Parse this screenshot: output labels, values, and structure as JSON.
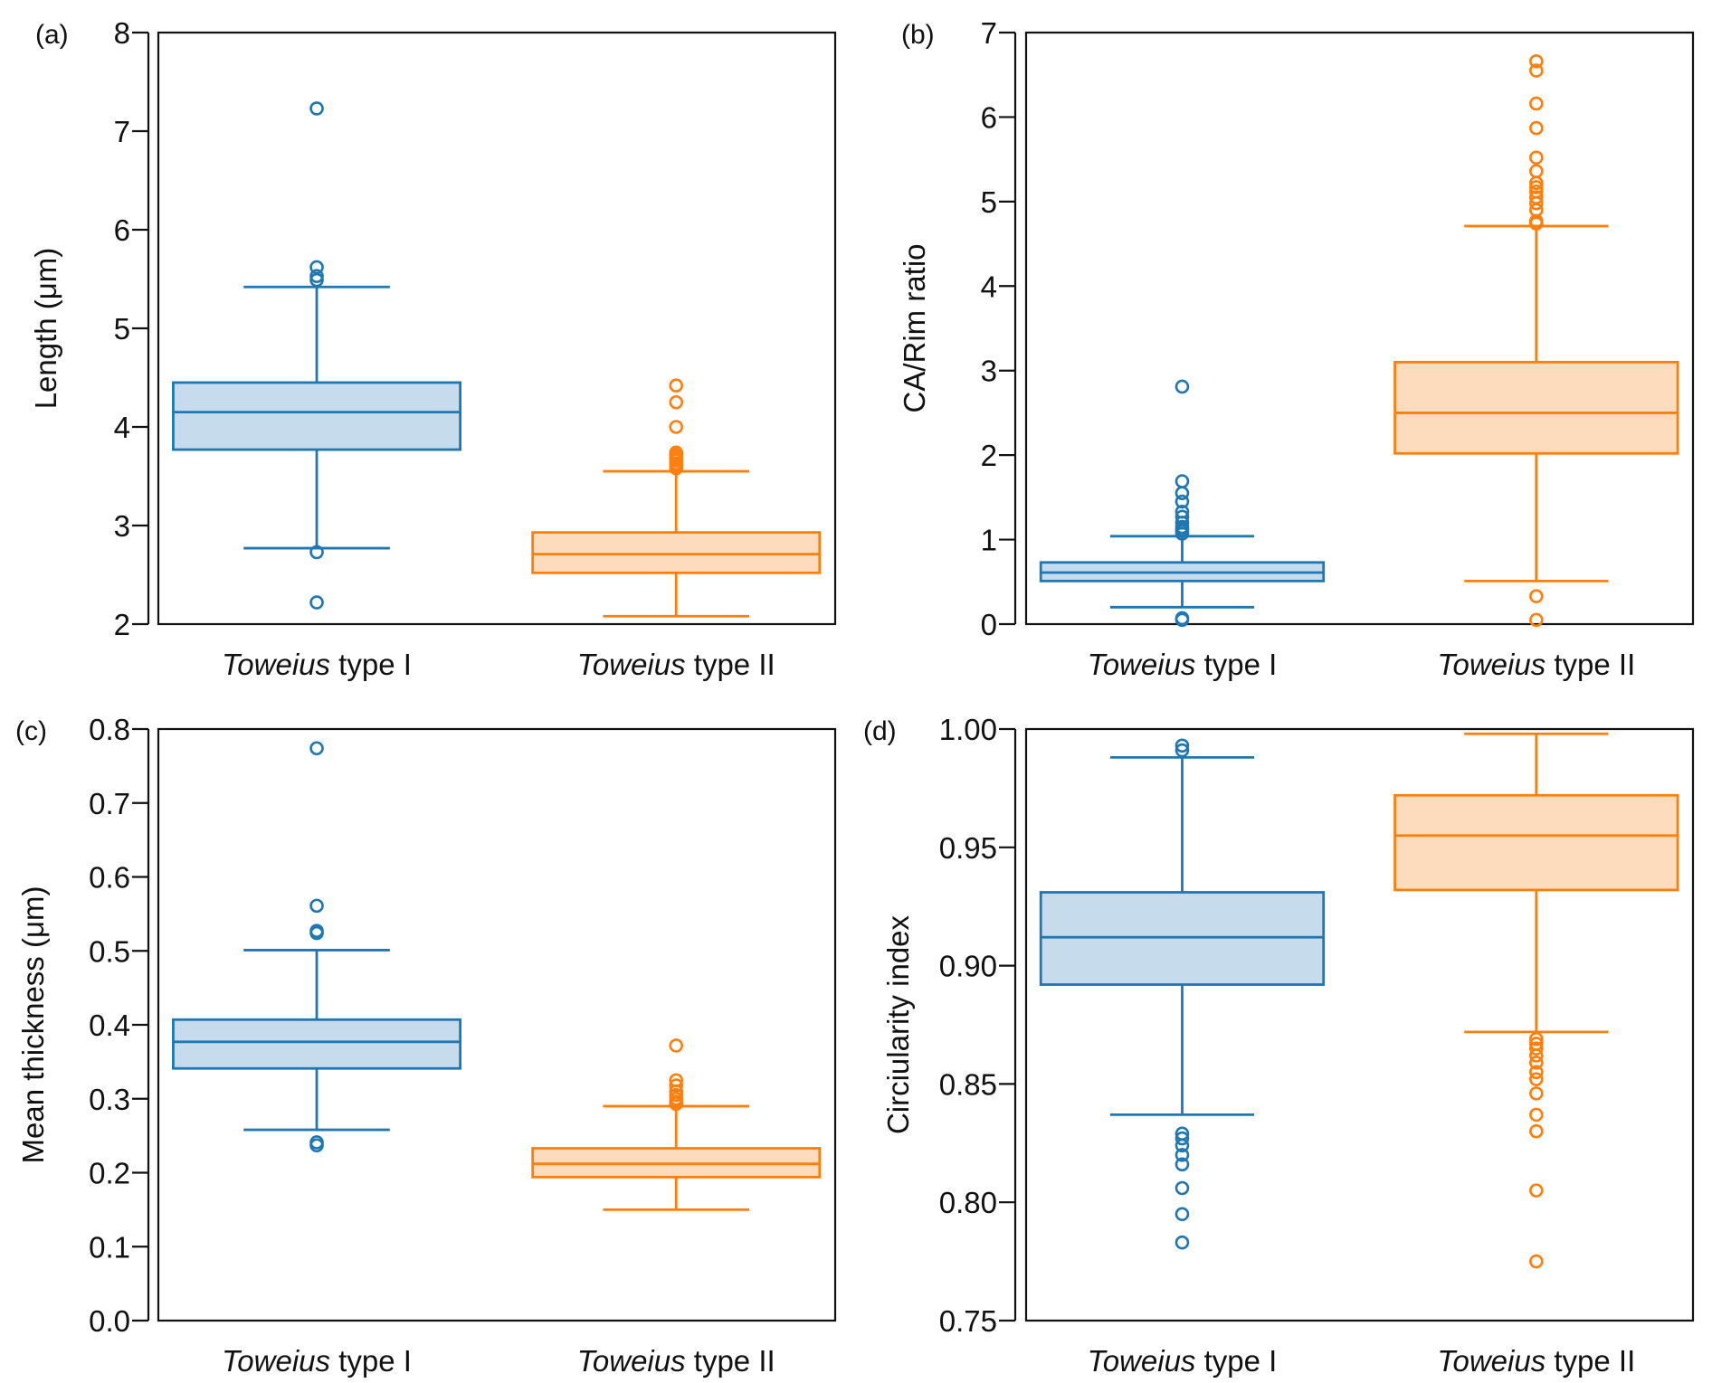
{
  "figure": {
    "panels": [
      "a",
      "b",
      "c",
      "d"
    ]
  },
  "colors": {
    "type_I_stroke": "#1f77b4",
    "type_I_fill": "#c6dcec",
    "type_II_stroke": "#ff7f0e",
    "type_II_fill": "#fddcbd",
    "axis": "#111111"
  },
  "chart_data": [
    {
      "type": "box",
      "panel_label": "(a)",
      "title": "",
      "xlabel": "",
      "ylabel": "Length (μm)",
      "ylim": [
        2,
        8
      ],
      "yticks": [
        2,
        3,
        4,
        5,
        6,
        7,
        8
      ],
      "ytick_labels": [
        "2",
        "3",
        "4",
        "5",
        "6",
        "7",
        "8"
      ],
      "categories": [
        {
          "genus": "Toweius",
          "rest": " type I"
        },
        {
          "genus": "Toweius",
          "rest": " type II"
        }
      ],
      "series": [
        {
          "name": "Toweius type I",
          "color_key": "type_I",
          "whisker_low": 2.77,
          "q1": 3.77,
          "median": 4.15,
          "q3": 4.45,
          "whisker_high": 5.42,
          "outliers": [
            7.23,
            5.62,
            5.53,
            5.49,
            2.73,
            2.22
          ]
        },
        {
          "name": "Toweius type II",
          "color_key": "type_II",
          "whisker_low": 2.08,
          "q1": 2.52,
          "median": 2.71,
          "q3": 2.93,
          "whisker_high": 3.55,
          "outliers": [
            4.42,
            4.25,
            4.0,
            3.74,
            3.72,
            3.7,
            3.68,
            3.66,
            3.63,
            3.6,
            3.58
          ]
        }
      ]
    },
    {
      "type": "box",
      "panel_label": "(b)",
      "title": "",
      "xlabel": "",
      "ylabel": "CA/Rim ratio",
      "ylim": [
        0,
        7
      ],
      "yticks": [
        0,
        1,
        2,
        3,
        4,
        5,
        6,
        7
      ],
      "ytick_labels": [
        "0",
        "1",
        "2",
        "3",
        "4",
        "5",
        "6",
        "7"
      ],
      "categories": [
        {
          "genus": "Toweius",
          "rest": " type I"
        },
        {
          "genus": "Toweius",
          "rest": " type II"
        }
      ],
      "series": [
        {
          "name": "Toweius type I",
          "color_key": "type_I",
          "whisker_low": 0.2,
          "q1": 0.51,
          "median": 0.61,
          "q3": 0.73,
          "whisker_high": 1.04,
          "outliers": [
            2.81,
            1.69,
            1.55,
            1.45,
            1.33,
            1.27,
            1.2,
            1.15,
            1.12,
            1.1,
            1.07,
            0.07,
            0.05
          ]
        },
        {
          "name": "Toweius type II",
          "color_key": "type_II",
          "whisker_low": 0.51,
          "q1": 2.02,
          "median": 2.5,
          "q3": 3.1,
          "whisker_high": 4.71,
          "outliers": [
            6.66,
            6.55,
            6.16,
            5.87,
            5.52,
            5.36,
            5.22,
            5.17,
            5.12,
            5.05,
            4.98,
            4.9,
            4.77,
            4.74,
            0.33,
            0.05
          ]
        }
      ]
    },
    {
      "type": "box",
      "panel_label": "(c)",
      "title": "",
      "xlabel": "",
      "ylabel": "Mean thickness (μm)",
      "ylim": [
        0.0,
        0.8
      ],
      "yticks": [
        0.0,
        0.1,
        0.2,
        0.3,
        0.4,
        0.5,
        0.6,
        0.7,
        0.8
      ],
      "ytick_labels": [
        "0.0",
        "0.1",
        "0.2",
        "0.3",
        "0.4",
        "0.5",
        "0.6",
        "0.7",
        "0.8"
      ],
      "categories": [
        {
          "genus": "Toweius",
          "rest": " type I"
        },
        {
          "genus": "Toweius",
          "rest": " type II"
        }
      ],
      "series": [
        {
          "name": "Toweius type I",
          "color_key": "type_I",
          "whisker_low": 0.258,
          "q1": 0.341,
          "median": 0.377,
          "q3": 0.407,
          "whisker_high": 0.501,
          "outliers": [
            0.774,
            0.561,
            0.527,
            0.524,
            0.241,
            0.237
          ]
        },
        {
          "name": "Toweius type II",
          "color_key": "type_II",
          "whisker_low": 0.15,
          "q1": 0.194,
          "median": 0.212,
          "q3": 0.233,
          "whisker_high": 0.29,
          "outliers": [
            0.372,
            0.325,
            0.318,
            0.31,
            0.305,
            0.3,
            0.296,
            0.293
          ]
        }
      ]
    },
    {
      "type": "box",
      "panel_label": "(d)",
      "title": "",
      "xlabel": "",
      "ylabel": "Circiularity index",
      "ylim": [
        0.75,
        1.0
      ],
      "yticks": [
        0.75,
        0.8,
        0.85,
        0.9,
        0.95,
        1.0
      ],
      "ytick_labels": [
        "0.75",
        "0.80",
        "0.85",
        "0.90",
        "0.95",
        "1.00"
      ],
      "categories": [
        {
          "genus": "Toweius",
          "rest": " type I"
        },
        {
          "genus": "Toweius",
          "rest": " type II"
        }
      ],
      "series": [
        {
          "name": "Toweius type I",
          "color_key": "type_I",
          "whisker_low": 0.837,
          "q1": 0.892,
          "median": 0.912,
          "q3": 0.931,
          "whisker_high": 0.988,
          "outliers": [
            0.993,
            0.991,
            0.829,
            0.827,
            0.824,
            0.82,
            0.816,
            0.806,
            0.795,
            0.783
          ]
        },
        {
          "name": "Toweius type II",
          "color_key": "type_II",
          "whisker_low": 0.872,
          "q1": 0.932,
          "median": 0.955,
          "q3": 0.972,
          "whisker_high": 0.998,
          "outliers": [
            0.869,
            0.867,
            0.865,
            0.862,
            0.859,
            0.855,
            0.852,
            0.846,
            0.837,
            0.83,
            0.805,
            0.775
          ]
        }
      ]
    }
  ]
}
